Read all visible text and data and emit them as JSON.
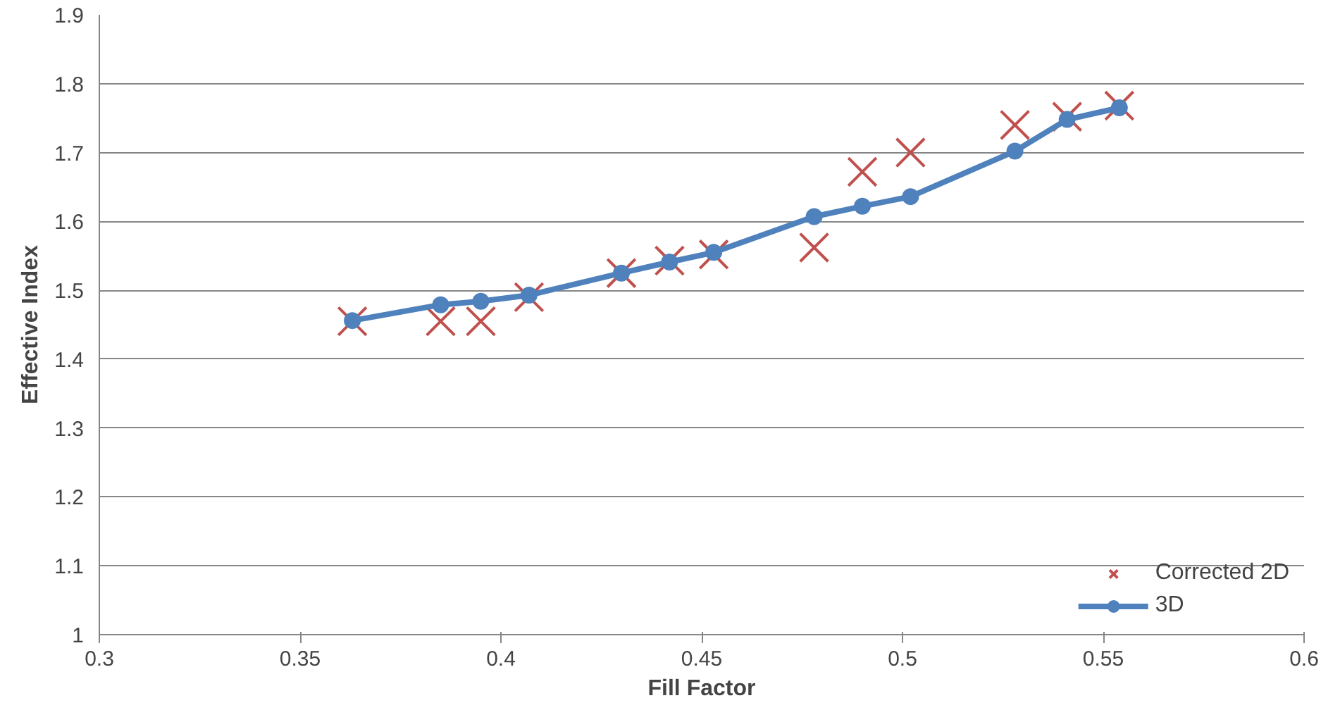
{
  "chart_data": {
    "type": "scatter",
    "xlabel": "Fill Factor",
    "ylabel": "Effective Index",
    "x": [
      0.363,
      0.385,
      0.395,
      0.407,
      0.43,
      0.442,
      0.453,
      0.478,
      0.49,
      0.502,
      0.528,
      0.541,
      0.554
    ],
    "series": [
      {
        "name": "Corrected 2D",
        "marker": "cross",
        "color": "#c0504d",
        "values": [
          1.455,
          1.455,
          1.455,
          1.49,
          1.525,
          1.543,
          1.552,
          1.562,
          1.672,
          1.7,
          1.74,
          1.752,
          1.768
        ]
      },
      {
        "name": "3D",
        "type": "line",
        "marker": "circle",
        "color": "#4f81bd",
        "values": [
          1.456,
          1.479,
          1.484,
          1.493,
          1.525,
          1.541,
          1.555,
          1.607,
          1.622,
          1.636,
          1.702,
          1.748,
          1.765
        ]
      }
    ],
    "xlim": [
      0.3,
      0.6
    ],
    "xticks": [
      0.3,
      0.35,
      0.4,
      0.45,
      0.5,
      0.55,
      0.6
    ],
    "ylim": [
      1,
      1.9
    ],
    "yticks": [
      1,
      1.1,
      1.2,
      1.3,
      1.4,
      1.5,
      1.6,
      1.7,
      1.8,
      1.9
    ],
    "grid": "y",
    "legend": "bottom right"
  }
}
